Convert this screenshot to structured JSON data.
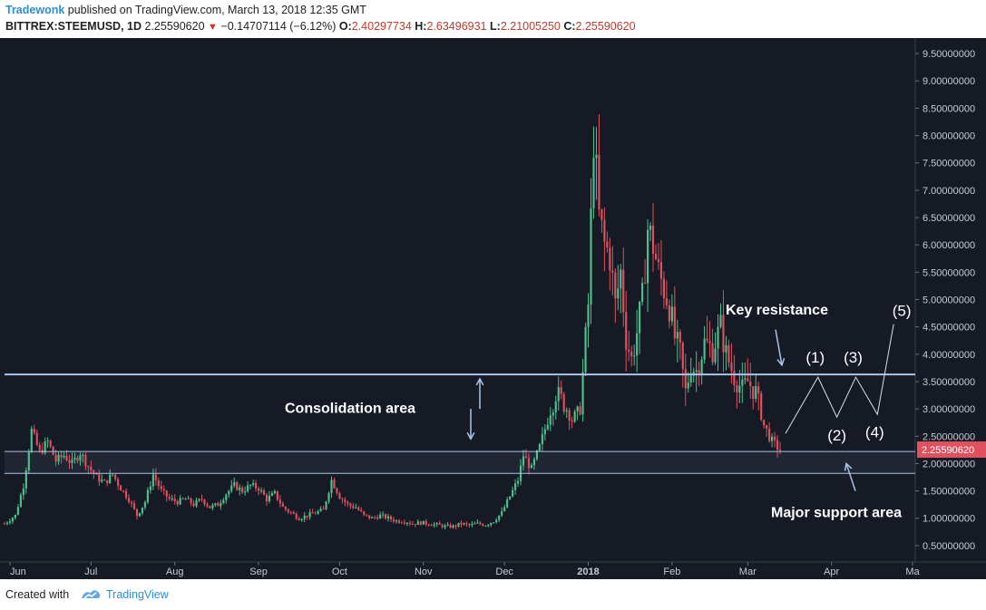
{
  "header": {
    "author": "Tradewonk",
    "published": "published on TradingView.com, March 13, 2018 12:35 GMT",
    "symbol": "BITTREX:STEEMUSD, 1D",
    "last": "2.25590620",
    "change": "−0.14707114 (−6.12%)",
    "o_label": "O:",
    "o_value": "2.40297734",
    "h_label": "H:",
    "h_value": "2.63496931",
    "l_label": "L:",
    "l_value": "2.21005250",
    "c_label": "C:",
    "c_value": "2.25590620"
  },
  "footer": {
    "created_with": "Created with",
    "brand": "TradingView"
  },
  "colors": {
    "background": "#161a25",
    "up": "#4fc08d",
    "down": "#e0505f",
    "level_line": "#a9c4e8",
    "price_tag": "#e0505f"
  },
  "chart_data": {
    "type": "candlestick",
    "symbol": "BITTREX:STEEMUSD",
    "interval": "1D",
    "y_ticks": [
      "9.50000000",
      "9.00000000",
      "8.50000000",
      "8.00000000",
      "7.50000000",
      "7.00000000",
      "6.50000000",
      "6.00000000",
      "5.50000000",
      "5.00000000",
      "4.50000000",
      "4.00000000",
      "3.50000000",
      "3.00000000",
      "2.50000000",
      "2.00000000",
      "1.50000000",
      "1.00000000",
      "0.50000000"
    ],
    "y_tick_values": [
      9.5,
      9.0,
      8.5,
      8.0,
      7.5,
      7.0,
      6.5,
      6.0,
      5.5,
      5.0,
      4.5,
      4.0,
      3.5,
      3.0,
      2.5,
      2.0,
      1.5,
      1.0,
      0.5
    ],
    "ylim": [
      0.2,
      9.75
    ],
    "x_range": [
      "2017-05-30",
      "2018-05-02"
    ],
    "x_ticks": [
      {
        "label": "Jun",
        "date": "2017-06-01"
      },
      {
        "label": "Jul",
        "date": "2017-07-01"
      },
      {
        "label": "Aug",
        "date": "2017-08-01"
      },
      {
        "label": "Sep",
        "date": "2017-09-01"
      },
      {
        "label": "Oct",
        "date": "2017-10-01"
      },
      {
        "label": "Nov",
        "date": "2017-11-01"
      },
      {
        "label": "Dec",
        "date": "2017-12-01"
      },
      {
        "label": "2018",
        "date": "2018-01-01",
        "bold": true
      },
      {
        "label": "Feb",
        "date": "2018-02-01"
      },
      {
        "label": "Mar",
        "date": "2018-03-01"
      },
      {
        "label": "Apr",
        "date": "2018-04-01"
      },
      {
        "label": "Ma",
        "date": "2018-05-01"
      }
    ],
    "closes": [
      {
        "date": "2017-05-30",
        "close": 0.9
      },
      {
        "date": "2017-06-03",
        "close": 1.05
      },
      {
        "date": "2017-06-06",
        "close": 1.6
      },
      {
        "date": "2017-06-09",
        "close": 2.6
      },
      {
        "date": "2017-06-12",
        "close": 2.2
      },
      {
        "date": "2017-06-15",
        "close": 2.4
      },
      {
        "date": "2017-06-18",
        "close": 2.05
      },
      {
        "date": "2017-06-21",
        "close": 2.15
      },
      {
        "date": "2017-06-24",
        "close": 2.0
      },
      {
        "date": "2017-06-27",
        "close": 2.2
      },
      {
        "date": "2017-06-30",
        "close": 1.95
      },
      {
        "date": "2017-07-03",
        "close": 1.75
      },
      {
        "date": "2017-07-06",
        "close": 1.65
      },
      {
        "date": "2017-07-09",
        "close": 1.8
      },
      {
        "date": "2017-07-12",
        "close": 1.55
      },
      {
        "date": "2017-07-15",
        "close": 1.35
      },
      {
        "date": "2017-07-18",
        "close": 1.05
      },
      {
        "date": "2017-07-21",
        "close": 1.3
      },
      {
        "date": "2017-07-24",
        "close": 1.8
      },
      {
        "date": "2017-07-27",
        "close": 1.5
      },
      {
        "date": "2017-07-30",
        "close": 1.35
      },
      {
        "date": "2017-08-02",
        "close": 1.3
      },
      {
        "date": "2017-08-05",
        "close": 1.35
      },
      {
        "date": "2017-08-08",
        "close": 1.25
      },
      {
        "date": "2017-08-11",
        "close": 1.35
      },
      {
        "date": "2017-08-14",
        "close": 1.2
      },
      {
        "date": "2017-08-17",
        "close": 1.25
      },
      {
        "date": "2017-08-20",
        "close": 1.45
      },
      {
        "date": "2017-08-23",
        "close": 1.6
      },
      {
        "date": "2017-08-26",
        "close": 1.5
      },
      {
        "date": "2017-08-29",
        "close": 1.6
      },
      {
        "date": "2017-09-01",
        "close": 1.55
      },
      {
        "date": "2017-09-04",
        "close": 1.35
      },
      {
        "date": "2017-09-07",
        "close": 1.45
      },
      {
        "date": "2017-09-10",
        "close": 1.2
      },
      {
        "date": "2017-09-13",
        "close": 1.1
      },
      {
        "date": "2017-09-16",
        "close": 1.0
      },
      {
        "date": "2017-09-19",
        "close": 1.05
      },
      {
        "date": "2017-09-22",
        "close": 1.1
      },
      {
        "date": "2017-09-25",
        "close": 1.15
      },
      {
        "date": "2017-09-28",
        "close": 1.7
      },
      {
        "date": "2017-10-01",
        "close": 1.4
      },
      {
        "date": "2017-10-04",
        "close": 1.25
      },
      {
        "date": "2017-10-07",
        "close": 1.2
      },
      {
        "date": "2017-10-10",
        "close": 1.05
      },
      {
        "date": "2017-10-13",
        "close": 1.0
      },
      {
        "date": "2017-10-16",
        "close": 1.05
      },
      {
        "date": "2017-10-19",
        "close": 1.0
      },
      {
        "date": "2017-10-22",
        "close": 0.95
      },
      {
        "date": "2017-10-25",
        "close": 0.95
      },
      {
        "date": "2017-10-28",
        "close": 0.9
      },
      {
        "date": "2017-10-31",
        "close": 0.92
      },
      {
        "date": "2017-11-03",
        "close": 0.9
      },
      {
        "date": "2017-11-06",
        "close": 0.88
      },
      {
        "date": "2017-11-09",
        "close": 0.85
      },
      {
        "date": "2017-11-12",
        "close": 0.85
      },
      {
        "date": "2017-11-15",
        "close": 0.9
      },
      {
        "date": "2017-11-18",
        "close": 0.87
      },
      {
        "date": "2017-11-21",
        "close": 0.9
      },
      {
        "date": "2017-11-24",
        "close": 0.88
      },
      {
        "date": "2017-11-27",
        "close": 0.95
      },
      {
        "date": "2017-11-30",
        "close": 1.1
      },
      {
        "date": "2017-12-03",
        "close": 1.4
      },
      {
        "date": "2017-12-06",
        "close": 1.7
      },
      {
        "date": "2017-12-08",
        "close": 2.15
      },
      {
        "date": "2017-12-11",
        "close": 1.9
      },
      {
        "date": "2017-12-14",
        "close": 2.3
      },
      {
        "date": "2017-12-17",
        "close": 2.8
      },
      {
        "date": "2017-12-20",
        "close": 3.3
      },
      {
        "date": "2017-12-23",
        "close": 3.1
      },
      {
        "date": "2017-12-26",
        "close": 2.8
      },
      {
        "date": "2017-12-29",
        "close": 3.0
      },
      {
        "date": "2018-01-01",
        "close": 4.9
      },
      {
        "date": "2018-01-03",
        "close": 8.0
      },
      {
        "date": "2018-01-05",
        "close": 6.5
      },
      {
        "date": "2018-01-07",
        "close": 6.0
      },
      {
        "date": "2018-01-09",
        "close": 5.8
      },
      {
        "date": "2018-01-11",
        "close": 4.9
      },
      {
        "date": "2018-01-13",
        "close": 5.5
      },
      {
        "date": "2018-01-15",
        "close": 4.3
      },
      {
        "date": "2018-01-17",
        "close": 3.9
      },
      {
        "date": "2018-01-19",
        "close": 4.4
      },
      {
        "date": "2018-01-21",
        "close": 5.0
      },
      {
        "date": "2018-01-23",
        "close": 6.3
      },
      {
        "date": "2018-01-25",
        "close": 6.0
      },
      {
        "date": "2018-01-27",
        "close": 5.5
      },
      {
        "date": "2018-01-29",
        "close": 5.2
      },
      {
        "date": "2018-01-31",
        "close": 4.9
      },
      {
        "date": "2018-02-02",
        "close": 4.3
      },
      {
        "date": "2018-02-04",
        "close": 4.0
      },
      {
        "date": "2018-02-06",
        "close": 3.3
      },
      {
        "date": "2018-02-08",
        "close": 3.8
      },
      {
        "date": "2018-02-10",
        "close": 3.7
      },
      {
        "date": "2018-02-13",
        "close": 4.2
      },
      {
        "date": "2018-02-16",
        "close": 4.1
      },
      {
        "date": "2018-02-19",
        "close": 4.5
      },
      {
        "date": "2018-02-21",
        "close": 4.0
      },
      {
        "date": "2018-02-24",
        "close": 3.6
      },
      {
        "date": "2018-02-27",
        "close": 3.35
      },
      {
        "date": "2018-03-01",
        "close": 3.5
      },
      {
        "date": "2018-03-04",
        "close": 3.3
      },
      {
        "date": "2018-03-07",
        "close": 2.7
      },
      {
        "date": "2018-03-10",
        "close": 2.4
      },
      {
        "date": "2018-03-13",
        "close": 2.2559062
      }
    ],
    "last_price_label": "2.25590620",
    "last_price": 2.2559062,
    "levels": [
      {
        "name": "key-resistance-line",
        "price": 3.63
      },
      {
        "name": "support-upper-line",
        "price": 2.22
      },
      {
        "name": "support-lower-line",
        "price": 1.82
      }
    ],
    "annotations": {
      "key_resistance": "Key resistance",
      "consolidation": "Consolidation area",
      "major_support": "Major support area"
    },
    "wave_path": [
      {
        "date": "2018-03-15",
        "price": 2.55
      },
      {
        "date": "2018-03-27",
        "price": 3.58
      },
      {
        "date": "2018-04-03",
        "price": 2.85
      },
      {
        "date": "2018-04-10",
        "price": 3.58
      },
      {
        "date": "2018-04-18",
        "price": 2.9
      },
      {
        "date": "2018-04-24",
        "price": 4.55
      }
    ],
    "wave_labels": [
      {
        "text": "(1)",
        "date": "2018-03-26",
        "price": 3.85
      },
      {
        "text": "(2)",
        "date": "2018-04-03",
        "price": 2.42
      },
      {
        "text": "(3)",
        "date": "2018-04-09",
        "price": 3.85
      },
      {
        "text": "(4)",
        "date": "2018-04-17",
        "price": 2.48
      },
      {
        "text": "(5)",
        "date": "2018-04-27",
        "price": 4.7
      }
    ]
  }
}
